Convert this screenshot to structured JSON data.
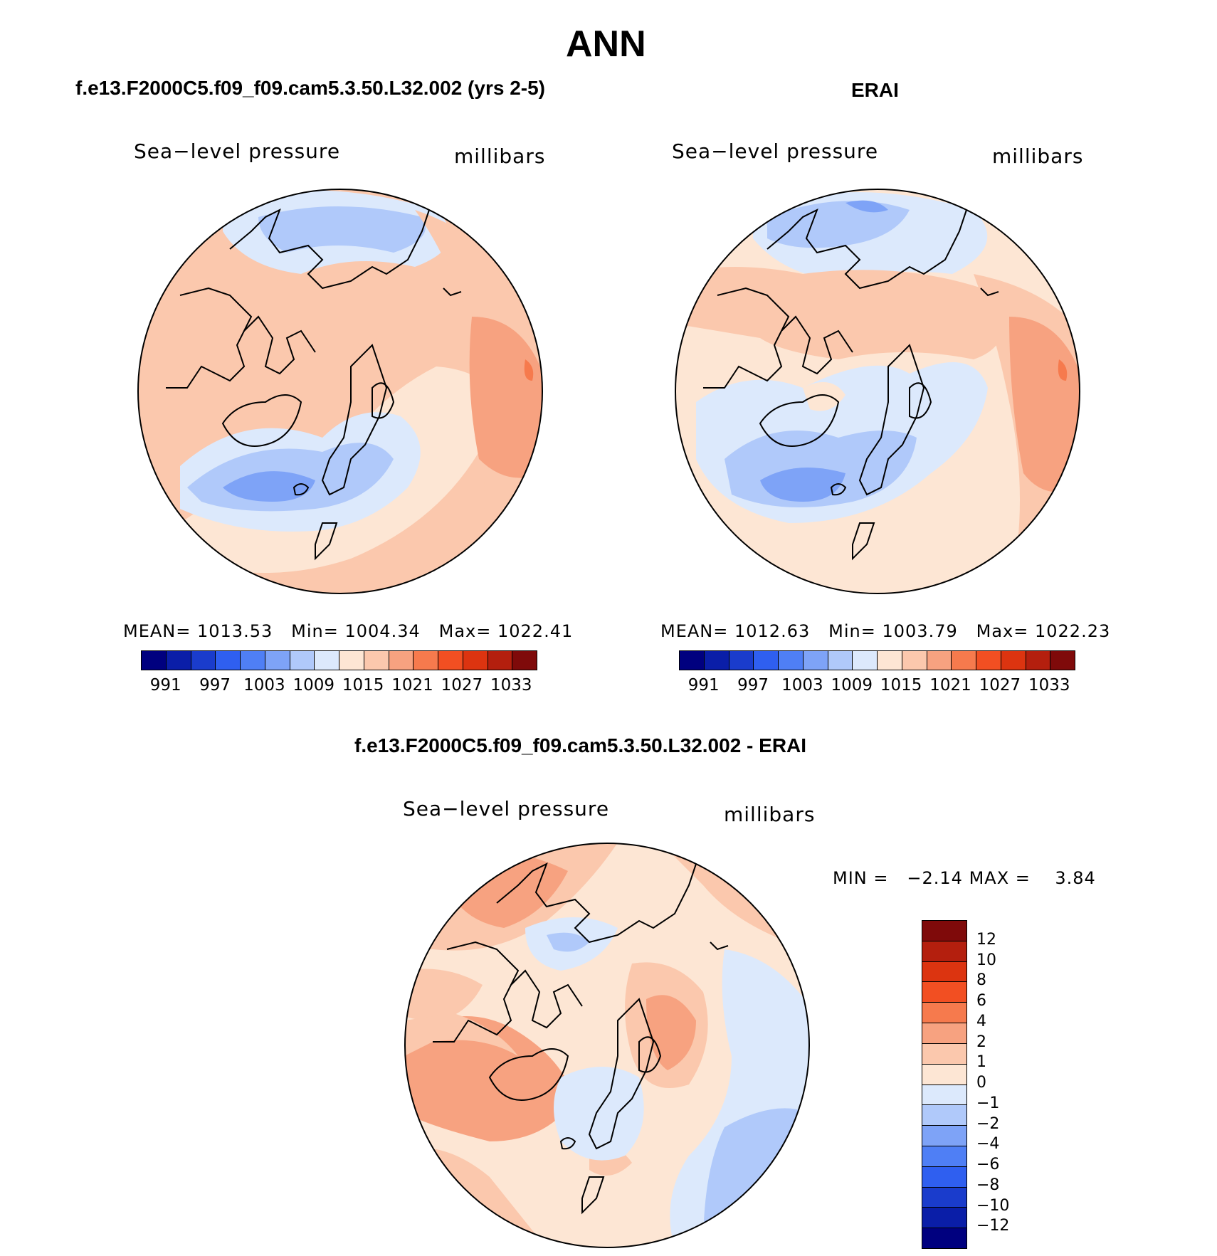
{
  "page_title": "ANN",
  "panels": [
    {
      "title": "f.e13.F2000C5.f09_f09.cam5.3.50.L32.002 (yrs 2-5)",
      "variable": "Sea−level pressure",
      "units": "millibars",
      "stats": {
        "mean_label": "MEAN=",
        "mean": "1013.53",
        "min_label": "Min=",
        "min": "1004.34",
        "max_label": "Max=",
        "max": "1022.41"
      }
    },
    {
      "title": "ERAI",
      "variable": "Sea−level pressure",
      "units": "millibars",
      "stats": {
        "mean_label": "MEAN=",
        "mean": "1012.63",
        "min_label": "Min=",
        "min": "1003.79",
        "max_label": "Max=",
        "max": "1022.23"
      }
    },
    {
      "title": "f.e13.F2000C5.f09_f09.cam5.3.50.L32.002 - ERAI",
      "variable": "Sea−level pressure",
      "units": "millibars",
      "stats": {
        "min_label": "MIN =",
        "min": "−2.14",
        "max_label": "MAX =",
        "max": "3.84"
      }
    }
  ],
  "abs_colorbar": {
    "colors": [
      "#00007f",
      "#0a1ea8",
      "#1a3ccc",
      "#2f5ff0",
      "#4f7ff5",
      "#7ea3f7",
      "#b0c9fa",
      "#dce9fc",
      "#fde6d4",
      "#fbc8ad",
      "#f7a280",
      "#f67a4d",
      "#f24f22",
      "#dc3410",
      "#b41f0e",
      "#7f0a0a"
    ],
    "ticks": [
      "991",
      "997",
      "1003",
      "1009",
      "1015",
      "1021",
      "1027",
      "1033"
    ]
  },
  "diff_colorbar": {
    "colors": [
      "#7f0a0a",
      "#b41f0e",
      "#dc3410",
      "#f24f22",
      "#f67a4d",
      "#f7a280",
      "#fbc8ad",
      "#fde6d4",
      "#dce9fc",
      "#b0c9fa",
      "#7ea3f7",
      "#4f7ff5",
      "#2f5ff0",
      "#1a3ccc",
      "#0a1ea8",
      "#00007f"
    ],
    "ticks": [
      "12",
      "10",
      "8",
      "6",
      "4",
      "2",
      "1",
      "0",
      "−1",
      "−2",
      "−4",
      "−6",
      "−8",
      "−10",
      "−12"
    ]
  }
}
